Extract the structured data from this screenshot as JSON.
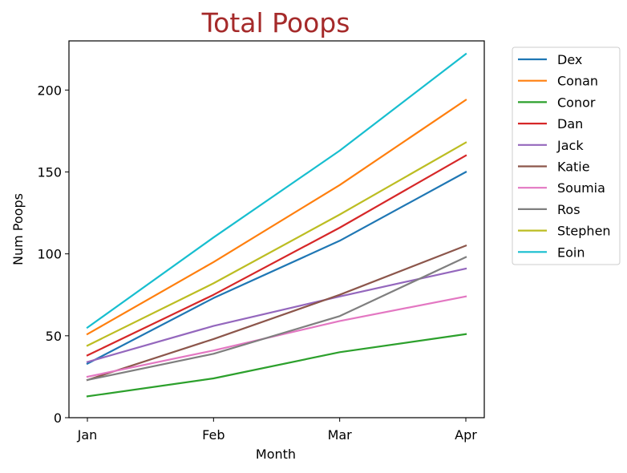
{
  "chart_data": {
    "type": "line",
    "title": "Total Poops",
    "xlabel": "Month",
    "ylabel": "Num Poops",
    "categories": [
      "Jan",
      "Feb",
      "Mar",
      "Apr"
    ],
    "ylim": [
      0,
      230
    ],
    "yticks": [
      0,
      50,
      100,
      150,
      200
    ],
    "grid": false,
    "legend_position": "outside-right",
    "series": [
      {
        "name": "Dex",
        "color": "#1f77b4",
        "values": [
          33,
          73,
          108,
          150
        ]
      },
      {
        "name": "Conan",
        "color": "#ff7f0e",
        "values": [
          51,
          95,
          142,
          194
        ]
      },
      {
        "name": "Conor",
        "color": "#2ca02c",
        "values": [
          13,
          24,
          40,
          51
        ]
      },
      {
        "name": "Dan",
        "color": "#d62728",
        "values": [
          38,
          75,
          116,
          160
        ]
      },
      {
        "name": "Jack",
        "color": "#9467bd",
        "values": [
          34,
          56,
          74,
          91
        ]
      },
      {
        "name": "Katie",
        "color": "#8c564b",
        "values": [
          23,
          48,
          75,
          105
        ]
      },
      {
        "name": "Soumia",
        "color": "#e377c2",
        "values": [
          25,
          41,
          59,
          74
        ]
      },
      {
        "name": "Ros",
        "color": "#7f7f7f",
        "values": [
          23,
          39,
          62,
          98
        ]
      },
      {
        "name": "Stephen",
        "color": "#bcbd22",
        "values": [
          44,
          82,
          124,
          168
        ]
      },
      {
        "name": "Eoin",
        "color": "#17becf",
        "values": [
          55,
          110,
          163,
          222
        ]
      }
    ]
  }
}
